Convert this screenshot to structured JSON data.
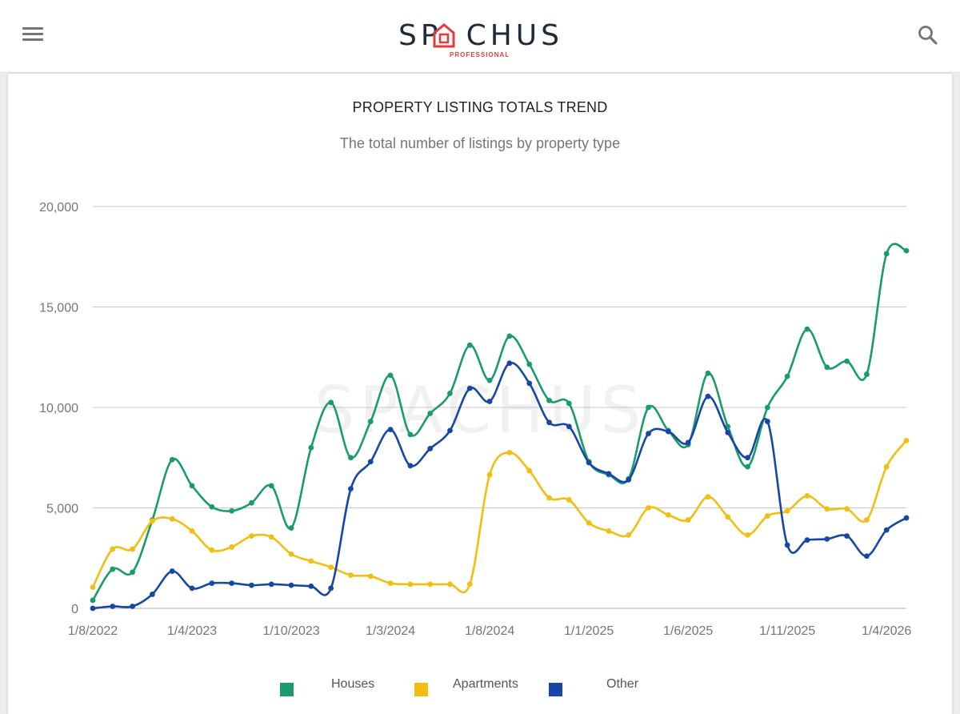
{
  "header": {
    "logo_text": "SPACHUS",
    "logo_sub": "PROFESSIONAL",
    "menu_icon": "hamburger-menu-icon",
    "search_icon": "magnifier-search-icon"
  },
  "watermark": "SPACHUS",
  "chart_data": {
    "type": "line",
    "title": "PROPERTY LISTING TOTALS TREND",
    "subtitle": "The total number of listings by property type",
    "xlabel": "",
    "ylabel": "",
    "ylim": [
      0,
      20000
    ],
    "yticks": [
      0,
      5000,
      10000,
      15000,
      20000
    ],
    "ytick_labels": [
      "0",
      "5,000",
      "10,000",
      "15,000",
      "20,000"
    ],
    "x_tick_labels": [
      "1/8/2022",
      "1/4/2023",
      "1/10/2023",
      "1/3/2024",
      "1/8/2024",
      "1/1/2025",
      "1/6/2025",
      "1/11/2025",
      "1/4/2026"
    ],
    "x_tick_index": [
      0,
      5,
      10,
      15,
      20,
      25,
      30,
      35,
      40
    ],
    "grid": true,
    "legend": "bottom",
    "series": [
      {
        "name": "Houses",
        "color": "#1a9b6c",
        "values": [
          400,
          1950,
          1800,
          4400,
          7400,
          6100,
          5050,
          4850,
          5250,
          6100,
          4000,
          8000,
          10250,
          7500,
          9300,
          11600,
          8650,
          9700,
          10700,
          13100,
          11350,
          13550,
          12150,
          10350,
          10200,
          7300,
          6650,
          6450,
          10000,
          8850,
          8150,
          11700,
          9050,
          7050,
          10000,
          11550,
          13900,
          12000,
          12300,
          11650,
          17650,
          17800
        ]
      },
      {
        "name": "Apartments",
        "color": "#f2be12",
        "values": [
          1050,
          2950,
          2950,
          4350,
          4450,
          3850,
          2900,
          3050,
          3600,
          3550,
          2700,
          2350,
          2050,
          1650,
          1600,
          1250,
          1200,
          1200,
          1200,
          1200,
          6650,
          7750,
          6850,
          5500,
          5400,
          4250,
          3850,
          3650,
          5000,
          4650,
          4400,
          5550,
          4550,
          3650,
          4600,
          4850,
          5600,
          4950,
          4950,
          4400,
          7050,
          8350
        ]
      },
      {
        "name": "Other",
        "color": "#1747a6",
        "values": [
          0,
          100,
          100,
          700,
          1850,
          1000,
          1250,
          1250,
          1150,
          1200,
          1150,
          1100,
          1000,
          5950,
          7300,
          8900,
          7100,
          7950,
          8850,
          10950,
          10300,
          12200,
          11200,
          9250,
          9050,
          7250,
          6700,
          6400,
          8700,
          8800,
          8250,
          10550,
          8750,
          7500,
          9300,
          3150,
          3400,
          3450,
          3600,
          2600,
          3900,
          4500
        ]
      }
    ]
  }
}
